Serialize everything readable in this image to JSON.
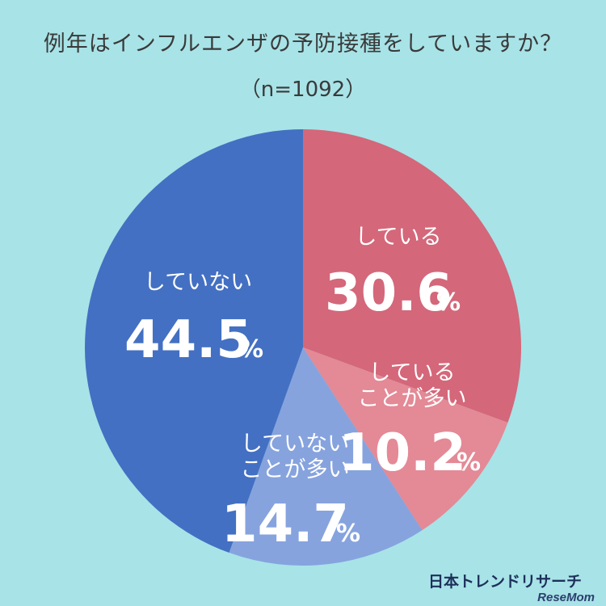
{
  "title": "例年はインフルエンザの予防接種をしていますか？",
  "subtitle": "（n=1092）",
  "brand": "日本トレンドリサーチ",
  "source": "ReseMom",
  "chart_data": {
    "type": "pie",
    "start_angle_deg": 0,
    "direction": "clockwise",
    "unit": "%",
    "slices": [
      {
        "label": [
          "している"
        ],
        "value": 30.6,
        "color": "#d4677a"
      },
      {
        "label": [
          "している",
          "ことが多い"
        ],
        "value": 10.2,
        "color": "#e48996"
      },
      {
        "label": [
          "していない",
          "ことが多い"
        ],
        "value": 14.7,
        "color": "#86a3de"
      },
      {
        "label": [
          "していない"
        ],
        "value": 44.5,
        "color": "#4370c2"
      }
    ]
  }
}
